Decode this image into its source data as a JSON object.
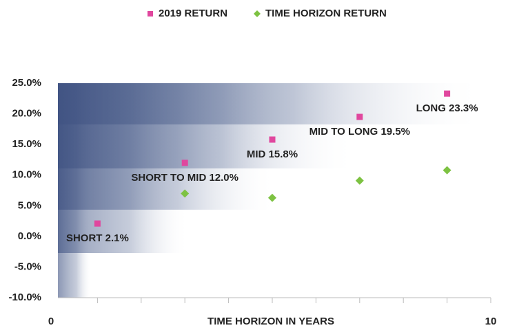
{
  "chart_data": {
    "type": "scatter",
    "xlabel": "TIME HORIZON IN YEARS",
    "categories": [
      "SHORT",
      "SHORT TO MID",
      "MID",
      "MID TO LONG",
      "LONG"
    ],
    "series": [
      {
        "name": "2019 RETURN",
        "color": "#e0479e",
        "marker": "square",
        "x": [
          1,
          3,
          5,
          7,
          9
        ],
        "values": [
          2.1,
          12.0,
          15.8,
          19.5,
          23.3
        ],
        "value_labels": [
          "2.1%",
          "12.0%",
          "15.8%",
          "19.5%",
          "23.3%"
        ]
      },
      {
        "name": "TIME HORIZON RETURN",
        "color": "#7dc242",
        "marker": "diamond",
        "x": [
          3,
          5,
          7,
          9
        ],
        "values": [
          7.0,
          6.3,
          9.1,
          10.8
        ]
      }
    ],
    "xlim": [
      0,
      10
    ],
    "xticks": [
      {
        "value": 0,
        "label": "0"
      },
      {
        "value": 1,
        "label": null
      },
      {
        "value": 2,
        "label": null
      },
      {
        "value": 3,
        "label": null
      },
      {
        "value": 4,
        "label": null
      },
      {
        "value": 5,
        "label": null
      },
      {
        "value": 6,
        "label": null
      },
      {
        "value": 7,
        "label": null
      },
      {
        "value": 8,
        "label": null
      },
      {
        "value": 9,
        "label": null
      },
      {
        "value": 10,
        "label": "10"
      }
    ],
    "ylim": [
      -10,
      25
    ],
    "yticks": [
      {
        "value": 25,
        "label": "25.0%"
      },
      {
        "value": 20,
        "label": "20.0%"
      },
      {
        "value": 15,
        "label": "15.0%"
      },
      {
        "value": 10,
        "label": "10.0%"
      },
      {
        "value": 5,
        "label": "5.0%"
      },
      {
        "value": 0,
        "label": "0.0%"
      },
      {
        "value": -5,
        "label": "-5.0%"
      },
      {
        "value": -10,
        "label": "-10.0%"
      }
    ],
    "legend": "top"
  }
}
